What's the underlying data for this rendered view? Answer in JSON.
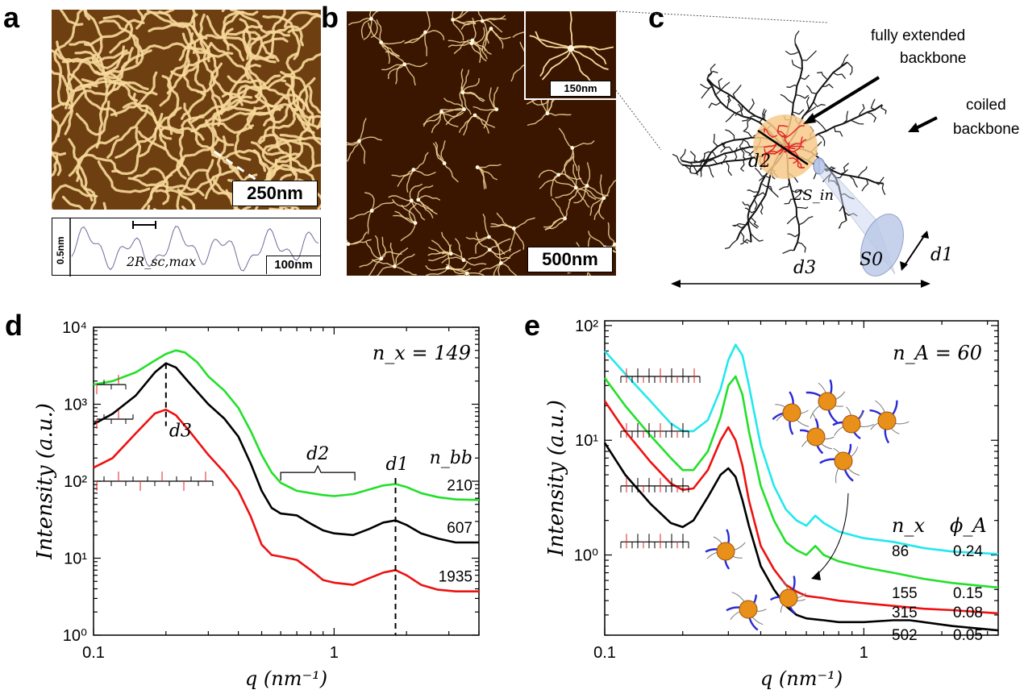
{
  "panels": {
    "a": {
      "label": "a",
      "scale_bar": "250nm",
      "profile": {
        "y_scale": "0.5nm",
        "x_scale": "100nm",
        "annotation": "2R_sc,max"
      }
    },
    "b": {
      "label": "b",
      "scale_bar": "500nm",
      "inset_scale": "150nm"
    },
    "c": {
      "label": "c",
      "callout_extended_line1": "fully extended",
      "callout_extended_line2": "backbone",
      "callout_coiled_line1": "coiled",
      "callout_coiled_line2": "backbone",
      "labels": [
        "d2",
        "2S_in",
        "S0",
        "d1",
        "d3"
      ]
    },
    "d": {
      "label": "d",
      "header": "n_x = 149",
      "right_header": "n_bb"
    },
    "e": {
      "label": "e",
      "header": "n_A = 60",
      "col1_header": "n_x",
      "col2_header": "ϕ_A"
    }
  },
  "colors": {
    "green": "#22e02a",
    "black": "#000000",
    "red": "#ee1111",
    "cyan": "#22e8ee",
    "afm_dark": "#3a1600",
    "afm_light": "#f6d89a",
    "blue_chain": "#2a2ad8",
    "bead": "#e8901a"
  },
  "chart_data": [
    {
      "type": "line",
      "panel": "d",
      "xlabel": "q (nm⁻¹)",
      "ylabel": "Intensity (a.u.)",
      "x_scale": "log",
      "y_scale": "log",
      "xlim": [
        0.1,
        4
      ],
      "ylim": [
        1,
        10000
      ],
      "x_ticks": [
        {
          "v": 0.1,
          "label": "0.1"
        },
        {
          "v": 1,
          "label": "1"
        }
      ],
      "y_ticks": [
        {
          "v": 1,
          "label": "10⁰"
        },
        {
          "v": 10,
          "label": "10¹"
        },
        {
          "v": 100,
          "label": "10²"
        },
        {
          "v": 1000,
          "label": "10³"
        },
        {
          "v": 10000,
          "label": "10⁴"
        }
      ],
      "annotations": [
        "d3",
        "d2",
        "d1"
      ],
      "series": [
        {
          "color": "green",
          "end_label": "210",
          "x": [
            0.1,
            0.12,
            0.15,
            0.18,
            0.2,
            0.22,
            0.24,
            0.27,
            0.3,
            0.35,
            0.4,
            0.45,
            0.5,
            0.55,
            0.6,
            0.7,
            0.8,
            0.9,
            1.0,
            1.2,
            1.4,
            1.6,
            1.8,
            2.0,
            2.3,
            2.7,
            3.2,
            4.0
          ],
          "y": [
            1800,
            2000,
            2600,
            3700,
            4500,
            5000,
            4700,
            3500,
            2300,
            1500,
            900,
            450,
            220,
            130,
            95,
            75,
            70,
            66,
            64,
            68,
            78,
            88,
            92,
            84,
            70,
            62,
            58,
            57
          ]
        },
        {
          "color": "black",
          "end_label": "607",
          "x": [
            0.1,
            0.12,
            0.15,
            0.18,
            0.2,
            0.22,
            0.25,
            0.3,
            0.35,
            0.4,
            0.45,
            0.5,
            0.55,
            0.6,
            0.7,
            0.8,
            0.9,
            1.0,
            1.2,
            1.4,
            1.6,
            1.8,
            2.0,
            2.3,
            2.7,
            3.2,
            4.0
          ],
          "y": [
            550,
            750,
            1300,
            2600,
            3400,
            3000,
            1900,
            1000,
            650,
            380,
            170,
            75,
            45,
            38,
            36,
            28,
            23,
            21,
            20,
            24,
            29,
            31,
            27,
            21,
            18,
            16,
            16
          ]
        },
        {
          "color": "red",
          "end_label": "1935",
          "x": [
            0.1,
            0.12,
            0.15,
            0.18,
            0.2,
            0.22,
            0.25,
            0.3,
            0.35,
            0.4,
            0.45,
            0.5,
            0.55,
            0.6,
            0.7,
            0.8,
            0.9,
            1.0,
            1.2,
            1.4,
            1.6,
            1.8,
            2.0,
            2.3,
            2.7,
            3.2,
            4.0
          ],
          "y": [
            150,
            200,
            420,
            760,
            850,
            720,
            450,
            220,
            130,
            75,
            35,
            15,
            11,
            10.5,
            9.5,
            7,
            5.2,
            4.8,
            4.5,
            5.5,
            6.5,
            7,
            6,
            4.5,
            3.9,
            3.7,
            3.7
          ]
        }
      ]
    },
    {
      "type": "line",
      "panel": "e",
      "xlabel": "q (nm⁻¹)",
      "ylabel": "Intensity (a.u.)",
      "x_scale": "log",
      "y_scale": "log",
      "xlim": [
        0.1,
        3.3
      ],
      "ylim": [
        0.2,
        110
      ],
      "x_ticks": [
        {
          "v": 0.1,
          "label": "0.1"
        },
        {
          "v": 1,
          "label": "1"
        }
      ],
      "y_ticks": [
        {
          "v": 1,
          "label": "10⁰"
        },
        {
          "v": 10,
          "label": "10¹"
        },
        {
          "v": 100,
          "label": "10²"
        }
      ],
      "series": [
        {
          "color": "cyan",
          "n_x": "86",
          "phi_A": "0.24",
          "x": [
            0.1,
            0.12,
            0.15,
            0.18,
            0.2,
            0.22,
            0.25,
            0.28,
            0.3,
            0.32,
            0.34,
            0.36,
            0.4,
            0.45,
            0.5,
            0.55,
            0.6,
            0.65,
            0.7,
            0.8,
            1.0,
            1.3,
            1.7,
            2.2,
            3.3
          ],
          "y": [
            60,
            38,
            22,
            14,
            12,
            12,
            15,
            28,
            50,
            68,
            55,
            30,
            9,
            4,
            2.5,
            2,
            1.8,
            2.2,
            1.9,
            1.6,
            1.4,
            1.3,
            1.15,
            1.07,
            1.02
          ]
        },
        {
          "color": "green",
          "n_x": "155",
          "phi_A": "0.15",
          "x": [
            0.1,
            0.12,
            0.15,
            0.18,
            0.2,
            0.22,
            0.25,
            0.28,
            0.3,
            0.32,
            0.34,
            0.36,
            0.4,
            0.45,
            0.5,
            0.55,
            0.6,
            0.65,
            0.7,
            0.8,
            1.0,
            1.3,
            1.7,
            2.2,
            3.3
          ],
          "y": [
            35,
            20,
            11,
            7,
            5.5,
            5.5,
            8,
            16,
            30,
            36,
            25,
            12,
            4,
            2,
            1.3,
            1.1,
            1.0,
            1.2,
            1.0,
            0.88,
            0.78,
            0.7,
            0.62,
            0.57,
            0.52
          ]
        },
        {
          "color": "red",
          "n_x": "315",
          "phi_A": "0.08",
          "x": [
            0.1,
            0.12,
            0.15,
            0.18,
            0.2,
            0.22,
            0.25,
            0.28,
            0.3,
            0.32,
            0.34,
            0.36,
            0.4,
            0.45,
            0.5,
            0.55,
            0.6,
            0.7,
            0.8,
            1.0,
            1.3,
            1.7,
            2.2,
            3.3
          ],
          "y": [
            22,
            12,
            6.5,
            4.2,
            3.7,
            3.8,
            5.5,
            10,
            13,
            10,
            6,
            3,
            1.2,
            0.75,
            0.55,
            0.48,
            0.44,
            0.42,
            0.4,
            0.38,
            0.36,
            0.34,
            0.33,
            0.31
          ]
        },
        {
          "color": "black",
          "n_x": "502",
          "phi_A": "0.05",
          "x": [
            0.1,
            0.12,
            0.15,
            0.18,
            0.2,
            0.22,
            0.25,
            0.28,
            0.3,
            0.32,
            0.34,
            0.36,
            0.4,
            0.45,
            0.5,
            0.55,
            0.6,
            0.7,
            0.8,
            1.0,
            1.3,
            1.5,
            1.7,
            2.2,
            3.3
          ],
          "y": [
            9.5,
            5,
            2.8,
            1.9,
            1.75,
            2,
            3.2,
            5,
            5.7,
            4.8,
            3,
            1.8,
            0.8,
            0.5,
            0.36,
            0.3,
            0.28,
            0.27,
            0.26,
            0.26,
            0.27,
            0.27,
            0.26,
            0.24,
            0.22
          ]
        }
      ]
    }
  ]
}
